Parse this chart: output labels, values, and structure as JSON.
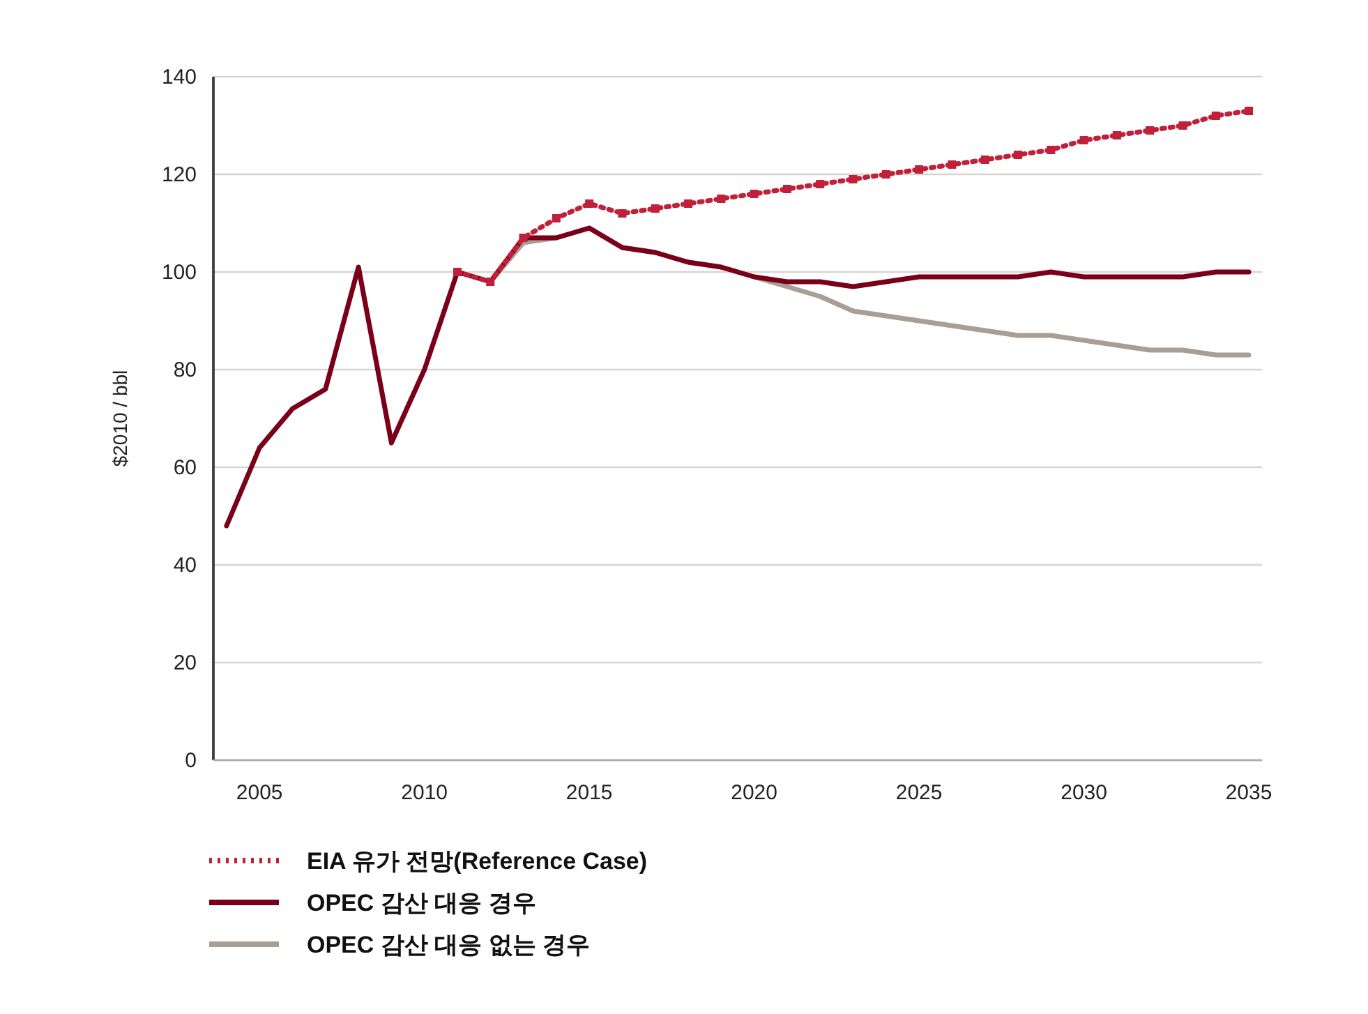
{
  "chart_data": {
    "type": "line",
    "ylabel": "$2010 / bbl",
    "xlim": [
      2003.6,
      2035.4
    ],
    "xticks": [
      2005,
      2010,
      2015,
      2020,
      2025,
      2030,
      2035
    ],
    "ylim": [
      0,
      140
    ],
    "yticks": [
      0,
      20,
      40,
      60,
      80,
      100,
      120,
      140
    ],
    "grid": "y",
    "legend": "bottom",
    "series": [
      {
        "name": "EIA 유가 전망(Reference Case)",
        "color": "#c0203a",
        "line_style": "dotted",
        "marker": "square",
        "x": [
          2011,
          2012,
          2013,
          2014,
          2015,
          2016,
          2017,
          2018,
          2019,
          2020,
          2021,
          2022,
          2023,
          2024,
          2025,
          2026,
          2027,
          2028,
          2029,
          2030,
          2031,
          2032,
          2033,
          2034,
          2035
        ],
        "values": [
          100,
          98,
          107,
          111,
          114,
          112,
          113,
          114,
          115,
          116,
          117,
          118,
          119,
          120,
          121,
          122,
          123,
          124,
          125,
          127,
          128,
          129,
          130,
          132,
          133
        ]
      },
      {
        "name": "OPEC 감산 대응 경우",
        "color": "#7a0019",
        "line_style": "solid",
        "x": [
          2004,
          2005,
          2006,
          2007,
          2008,
          2009,
          2010,
          2011,
          2012,
          2013,
          2014,
          2015,
          2016,
          2017,
          2018,
          2019,
          2020,
          2021,
          2022,
          2023,
          2024,
          2025,
          2026,
          2027,
          2028,
          2029,
          2030,
          2031,
          2032,
          2033,
          2034,
          2035
        ],
        "values": [
          48,
          64,
          72,
          76,
          101,
          65,
          80,
          100,
          98,
          107,
          107,
          109,
          105,
          104,
          102,
          101,
          99,
          98,
          98,
          97,
          98,
          99,
          99,
          99,
          99,
          100,
          99,
          99,
          99,
          99,
          100,
          100
        ]
      },
      {
        "name": "OPEC 감산 대응 없는 경우",
        "color": "#a89e94",
        "line_style": "solid",
        "x": [
          2012,
          2013,
          2014,
          2015,
          2016,
          2017,
          2018,
          2019,
          2020,
          2021,
          2022,
          2023,
          2024,
          2025,
          2026,
          2027,
          2028,
          2029,
          2030,
          2031,
          2032,
          2033,
          2034,
          2035
        ],
        "values": [
          98,
          106,
          107,
          109,
          105,
          104,
          102,
          101,
          99,
          97,
          95,
          92,
          91,
          90,
          89,
          88,
          87,
          87,
          86,
          85,
          84,
          84,
          83,
          83
        ]
      }
    ]
  }
}
